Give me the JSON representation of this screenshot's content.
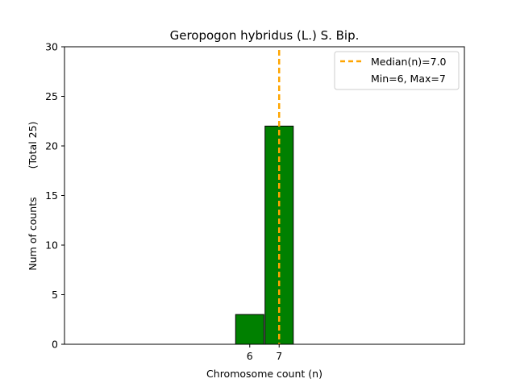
{
  "chart_data": {
    "type": "bar",
    "title": "Geropogon hybridus (L.) S. Bip.",
    "xlabel": "Chromosome count (n)",
    "ylabel": "Num of counts",
    "ylabel_note": "(Total 25)",
    "x": [
      6,
      7
    ],
    "values": [
      3,
      22
    ],
    "xticks": [
      6,
      7
    ],
    "yticks": [
      0,
      5,
      10,
      15,
      20,
      25,
      30
    ],
    "ylim": [
      0,
      30
    ],
    "xlim": [
      -0.3,
      13.3
    ],
    "median_line": {
      "x": 7.0,
      "label": "Median(n)=7.0",
      "color": "#FFA500"
    },
    "legend_note": "Min=6, Max=7",
    "legend_position": "top-right",
    "bar_color": "#008000",
    "bar_edge_color": "#000000",
    "grid": false
  }
}
